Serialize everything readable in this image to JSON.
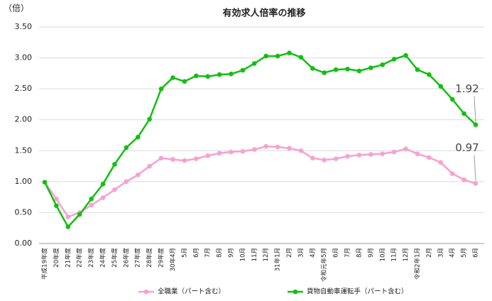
{
  "chart_data": {
    "type": "line",
    "title": "有効求人倍率の推移",
    "y_label": "（倍）",
    "categories": [
      "平成19年度",
      "20年度",
      "21年度",
      "22年度",
      "23年度",
      "24年度",
      "25年度",
      "26年度",
      "27年度",
      "28年度",
      "29年度",
      "30年4月",
      "5月",
      "6月",
      "7月",
      "8月",
      "9月",
      "10月",
      "11月",
      "12月",
      "31年1月",
      "2月",
      "3月",
      "4月",
      "令和元年5月",
      "6月",
      "7月",
      "8月",
      "9月",
      "10月",
      "11月",
      "12月",
      "令和2年1月",
      "2月",
      "3月",
      "4月",
      "5月",
      "6月"
    ],
    "series": [
      {
        "name": "全職業（パート含む）",
        "color": "#f7a1d2",
        "values": [
          0.99,
          0.72,
          0.43,
          0.5,
          0.62,
          0.74,
          0.87,
          1.0,
          1.11,
          1.25,
          1.38,
          1.36,
          1.34,
          1.37,
          1.42,
          1.46,
          1.48,
          1.49,
          1.52,
          1.57,
          1.56,
          1.54,
          1.5,
          1.38,
          1.35,
          1.37,
          1.41,
          1.43,
          1.44,
          1.45,
          1.48,
          1.53,
          1.45,
          1.39,
          1.31,
          1.13,
          1.03,
          0.97
        ]
      },
      {
        "name": "貨物自動車運転手（パート含む）",
        "color": "#11c011",
        "values": [
          0.99,
          0.61,
          0.27,
          0.47,
          0.72,
          0.96,
          1.28,
          1.55,
          1.72,
          2.01,
          2.5,
          2.68,
          2.62,
          2.71,
          2.7,
          2.73,
          2.74,
          2.8,
          2.91,
          3.03,
          3.03,
          3.08,
          3.01,
          2.83,
          2.76,
          2.81,
          2.82,
          2.79,
          2.84,
          2.89,
          2.98,
          3.04,
          2.81,
          2.73,
          2.54,
          2.33,
          2.1,
          1.92
        ]
      }
    ],
    "ylim": [
      0,
      3.5
    ],
    "yticks": [
      {
        "value": 0,
        "label": "0.00"
      },
      {
        "value": 0.5,
        "label": "0.50"
      },
      {
        "value": 1,
        "label": "1.00"
      },
      {
        "value": 1.5,
        "label": "1.50"
      },
      {
        "value": 2,
        "label": "2.00"
      },
      {
        "value": 2.5,
        "label": "2.50"
      },
      {
        "value": 3,
        "label": "3.00"
      },
      {
        "value": 3.5,
        "label": "3.50"
      }
    ],
    "grid": true,
    "legend": "bottom"
  }
}
